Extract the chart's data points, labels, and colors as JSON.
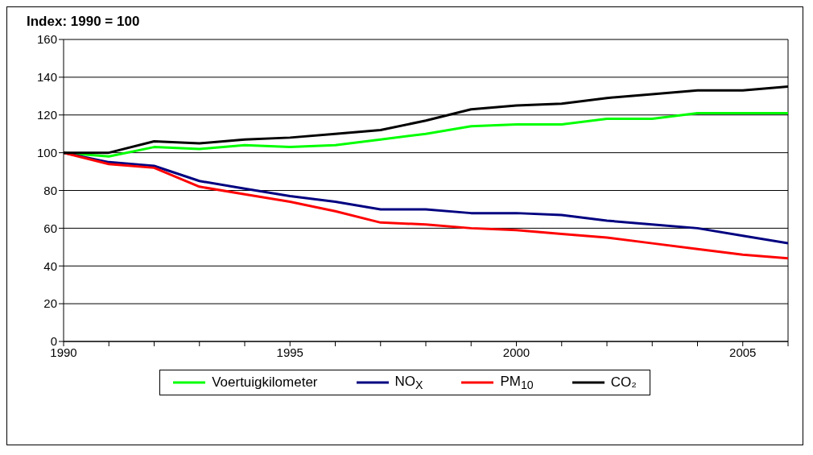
{
  "chart_data": {
    "type": "line",
    "title": "Index: 1990 = 100",
    "x": [
      1990,
      1991,
      1992,
      1993,
      1994,
      1995,
      1996,
      1997,
      1998,
      1999,
      2000,
      2001,
      2002,
      2003,
      2004,
      2005,
      2006
    ],
    "series": [
      {
        "name": "Voertuigkilometer",
        "color": "#00ff00",
        "values": [
          100,
          98,
          103,
          102,
          104,
          103,
          104,
          107,
          110,
          114,
          115,
          115,
          118,
          118,
          121,
          121,
          121
        ]
      },
      {
        "name": "NO$_{X}$",
        "color": "#000080",
        "values": [
          100,
          95,
          93,
          85,
          81,
          77,
          74,
          70,
          70,
          68,
          68,
          67,
          64,
          62,
          60,
          56,
          52
        ]
      },
      {
        "name": "PM$_{10}$",
        "color": "#ff0000",
        "values": [
          100,
          94,
          92,
          82,
          78,
          74,
          69,
          63,
          62,
          60,
          59,
          57,
          55,
          52,
          49,
          46,
          44
        ]
      },
      {
        "name": "CO₂",
        "color": "#000000",
        "values": [
          100,
          100,
          106,
          105,
          107,
          108,
          110,
          112,
          117,
          123,
          125,
          126,
          129,
          131,
          133,
          133,
          135
        ]
      }
    ],
    "xlim": [
      1990,
      2006
    ],
    "xticks": [
      1990,
      {
        "value": 1991,
        "label": null
      },
      {
        "value": 1992,
        "label": null
      },
      {
        "value": 1993,
        "label": null
      },
      {
        "value": 1994,
        "label": null
      },
      1995,
      {
        "value": 1996,
        "label": null
      },
      {
        "value": 1997,
        "label": null
      },
      {
        "value": 1998,
        "label": null
      },
      {
        "value": 1999,
        "label": null
      },
      2000,
      {
        "value": 2001,
        "label": null
      },
      {
        "value": 2002,
        "label": null
      },
      {
        "value": 2003,
        "label": null
      },
      {
        "value": 2004,
        "label": null
      },
      2005,
      {
        "value": 2006,
        "label": null
      }
    ],
    "ylim": [
      0,
      160
    ],
    "yticks": [
      0,
      20,
      40,
      60,
      80,
      100,
      120,
      140,
      160
    ],
    "grid": "y",
    "legend": "bottom",
    "marker": "none",
    "line_style": "solid"
  }
}
